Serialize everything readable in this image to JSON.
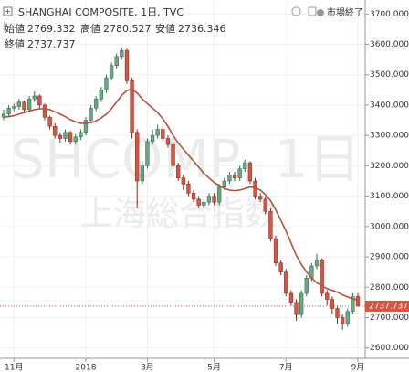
{
  "chart_data": {
    "type": "candlestick",
    "title": "SHANGHAI COMPOSITE, 1日, TVC",
    "status": "市場終了",
    "ohlc_names": [
      "始値",
      "高値",
      "安値",
      "終値"
    ],
    "watermark": [
      "SHCOMP, 1日",
      "上海総合指数"
    ],
    "categories": [
      null,
      null,
      "11月",
      null,
      null,
      null,
      null,
      null,
      null,
      null,
      null,
      null,
      null,
      null,
      null,
      null,
      "2018",
      null,
      null,
      null,
      null,
      null,
      null,
      null,
      null,
      null,
      null,
      null,
      "3月",
      null,
      null,
      null,
      null,
      null,
      null,
      null,
      null,
      null,
      null,
      null,
      null,
      "5月",
      null,
      null,
      null,
      null,
      null,
      null,
      null,
      null,
      null,
      null,
      null,
      null,
      null,
      "7月",
      null,
      null,
      null,
      null,
      null,
      null,
      null,
      null,
      null,
      null,
      null,
      null,
      null,
      "9月"
    ],
    "open": [
      3360,
      3370,
      3390,
      3395,
      3410,
      3385,
      3420,
      3430,
      3400,
      3360,
      3330,
      3300,
      3290,
      3310,
      3280,
      3295,
      3310,
      3350,
      3390,
      3420,
      3450,
      3490,
      3530,
      3560,
      3580,
      3480,
      3310,
      3150,
      3200,
      3280,
      3300,
      3320,
      3290,
      3270,
      3200,
      3160,
      3140,
      3110,
      3090,
      3070,
      3080,
      3100,
      3080,
      3130,
      3150,
      3170,
      3160,
      3190,
      3210,
      3150,
      3100,
      3090,
      3050,
      2960,
      2880,
      2850,
      2780,
      2750,
      2710,
      2780,
      2830,
      2870,
      2890,
      2780,
      2760,
      2730,
      2700,
      2680,
      2720,
      2769.332
    ],
    "high": [
      3385,
      3400,
      3405,
      3420,
      3415,
      3430,
      3445,
      3435,
      3405,
      3365,
      3340,
      3310,
      3320,
      3315,
      3305,
      3320,
      3360,
      3400,
      3430,
      3460,
      3500,
      3540,
      3570,
      3590,
      3585,
      3490,
      3320,
      3215,
      3290,
      3320,
      3335,
      3330,
      3300,
      3280,
      3210,
      3170,
      3150,
      3120,
      3100,
      3090,
      3110,
      3110,
      3140,
      3160,
      3180,
      3180,
      3200,
      3220,
      3215,
      3160,
      3110,
      3100,
      3060,
      2970,
      2890,
      2860,
      2790,
      2760,
      2790,
      2840,
      2880,
      2910,
      2895,
      2790,
      2770,
      2740,
      2710,
      2730,
      2780,
      2780.527
    ],
    "low": [
      3350,
      3360,
      3380,
      3385,
      3375,
      3375,
      3410,
      3390,
      3350,
      3320,
      3290,
      3275,
      3280,
      3270,
      3270,
      3285,
      3300,
      3340,
      3380,
      3410,
      3440,
      3480,
      3520,
      3550,
      3470,
      3290,
      3060,
      3140,
      3190,
      3270,
      3290,
      3280,
      3260,
      3190,
      3150,
      3120,
      3100,
      3080,
      3060,
      3060,
      3070,
      3070,
      3070,
      3120,
      3140,
      3150,
      3150,
      3180,
      3140,
      3090,
      3080,
      3040,
      2950,
      2870,
      2840,
      2770,
      2740,
      2690,
      2700,
      2770,
      2820,
      2860,
      2770,
      2740,
      2710,
      2680,
      2660,
      2670,
      2710,
      2736.346
    ],
    "close": [
      3370,
      3390,
      3395,
      3410,
      3385,
      3420,
      3430,
      3400,
      3360,
      3330,
      3300,
      3290,
      3310,
      3280,
      3295,
      3310,
      3350,
      3390,
      3420,
      3450,
      3490,
      3530,
      3560,
      3580,
      3480,
      3310,
      3150,
      3200,
      3280,
      3300,
      3320,
      3290,
      3270,
      3200,
      3160,
      3140,
      3110,
      3090,
      3070,
      3080,
      3100,
      3080,
      3130,
      3150,
      3170,
      3160,
      3190,
      3210,
      3150,
      3100,
      3090,
      3050,
      2960,
      2880,
      2850,
      2780,
      2750,
      2710,
      2780,
      2830,
      2870,
      2890,
      2780,
      2760,
      2730,
      2700,
      2680,
      2720,
      2769,
      2737.737
    ],
    "up_color": "#6ba583",
    "down_color": "#d75442",
    "ma": {
      "color": "#b4533b",
      "values": [
        3360,
        3362,
        3365,
        3370,
        3375,
        3380,
        3385,
        3388,
        3388,
        3385,
        3378,
        3370,
        3362,
        3352,
        3345,
        3340,
        3340,
        3342,
        3348,
        3358,
        3370,
        3388,
        3410,
        3432,
        3448,
        3452,
        3440,
        3420,
        3405,
        3390,
        3375,
        3355,
        3330,
        3300,
        3275,
        3255,
        3235,
        3215,
        3195,
        3175,
        3160,
        3145,
        3135,
        3125,
        3120,
        3118,
        3120,
        3125,
        3130,
        3128,
        3120,
        3105,
        3085,
        3055,
        3020,
        2985,
        2945,
        2905,
        2875,
        2850,
        2830,
        2815,
        2805,
        2795,
        2790,
        2784,
        2775,
        2768,
        2762,
        2758
      ]
    },
    "ylim": [
      2566,
      3746
    ],
    "yticks": [
      {
        "value": 2600,
        "label": "2600.000"
      },
      {
        "value": 2700,
        "label": "2700.000"
      },
      {
        "value": 2800,
        "label": "2800.000"
      },
      {
        "value": 2900,
        "label": "2900.000"
      },
      {
        "value": 3000,
        "label": "3000.000"
      },
      {
        "value": 3100,
        "label": "3100.000"
      },
      {
        "value": 3200,
        "label": "3200.000"
      },
      {
        "value": 3300,
        "label": "3300.000"
      },
      {
        "value": 3400,
        "label": "3400.000"
      },
      {
        "value": 3500,
        "label": "3500.000"
      },
      {
        "value": 3600,
        "label": "3600.000"
      },
      {
        "value": 3700,
        "label": "3700.000"
      }
    ],
    "grid": true
  }
}
